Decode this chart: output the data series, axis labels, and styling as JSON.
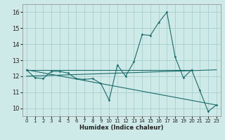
{
  "xlabel": "Humidex (Indice chaleur)",
  "background_color": "#ceeae8",
  "grid_color": "#a8cece",
  "line_color": "#1a6b6b",
  "xlim": [
    -0.5,
    23.5
  ],
  "ylim": [
    9.5,
    16.5
  ],
  "xticks": [
    0,
    1,
    2,
    3,
    4,
    5,
    6,
    7,
    8,
    9,
    10,
    11,
    12,
    13,
    14,
    15,
    16,
    17,
    18,
    19,
    20,
    21,
    22,
    23
  ],
  "yticks": [
    10,
    11,
    12,
    13,
    14,
    15,
    16
  ],
  "main_series": [
    [
      0,
      12.4
    ],
    [
      1,
      11.9
    ],
    [
      2,
      11.85
    ],
    [
      3,
      12.3
    ],
    [
      4,
      12.3
    ],
    [
      5,
      12.2
    ],
    [
      6,
      11.85
    ],
    [
      7,
      11.8
    ],
    [
      8,
      11.85
    ],
    [
      9,
      11.55
    ],
    [
      10,
      10.5
    ],
    [
      11,
      12.7
    ],
    [
      12,
      12.0
    ],
    [
      13,
      12.9
    ],
    [
      14,
      14.6
    ],
    [
      15,
      14.55
    ],
    [
      16,
      15.35
    ],
    [
      17,
      16.0
    ],
    [
      18,
      13.2
    ],
    [
      19,
      11.9
    ],
    [
      20,
      12.4
    ],
    [
      21,
      11.1
    ],
    [
      22,
      9.8
    ],
    [
      23,
      10.2
    ]
  ],
  "line_flat": [
    [
      0,
      12.4
    ],
    [
      20,
      12.4
    ]
  ],
  "line_diag1": [
    [
      0,
      12.4
    ],
    [
      23,
      10.2
    ]
  ],
  "line_diag2": [
    [
      0,
      12.0
    ],
    [
      23,
      12.4
    ]
  ]
}
